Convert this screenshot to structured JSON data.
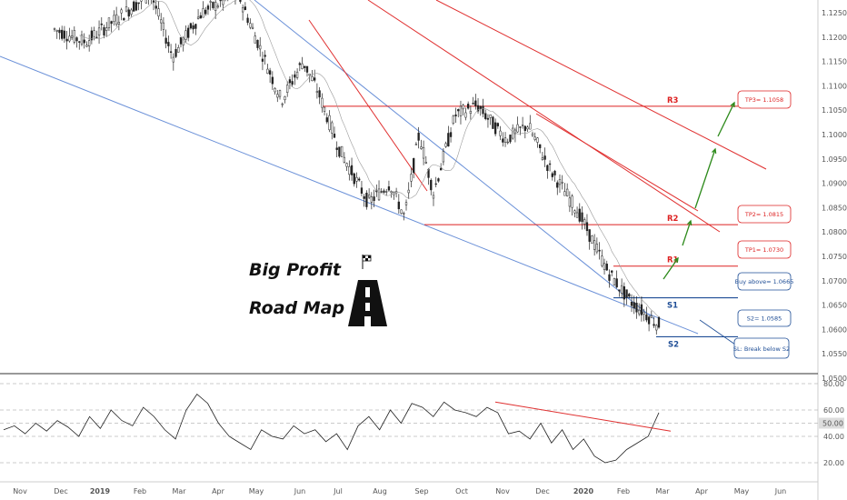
{
  "chart_data": [
    {
      "type": "candlestick",
      "title": "",
      "xlabel": "",
      "ylabel": "",
      "ylim": [
        1.046,
        1.129
      ],
      "x_tick_labels": [
        "Nov",
        "Dec",
        "2019",
        "Feb",
        "Mar",
        "Apr",
        "May",
        "Jun",
        "Jul",
        "Aug",
        "Sep",
        "Oct",
        "Nov",
        "Dec",
        "2020",
        "Feb",
        "Mar",
        "Apr",
        "May",
        "Jun"
      ],
      "y_ticks": [
        1.125,
        1.12,
        1.115,
        1.11,
        1.105,
        1.1,
        1.095,
        1.09,
        1.085,
        1.08,
        1.075,
        1.07,
        1.065,
        1.06,
        1.055,
        1.05
      ],
      "y_tick_labels": [
        "1.12500",
        "1.12000",
        "1.11500",
        "1.11000",
        "1.10500",
        "1.10000",
        "1.09500",
        "1.09000",
        "1.08500",
        "1.08000",
        "1.07500",
        "1.07000",
        "1.06500",
        "1.06000",
        "1.05500",
        "1.05000"
      ],
      "price_path": [
        [
          0,
          1.127
        ],
        [
          0.06,
          1.122
        ],
        [
          0.11,
          1.119
        ],
        [
          0.2,
          1.129
        ],
        [
          0.23,
          1.116
        ],
        [
          0.27,
          1.125
        ],
        [
          0.32,
          1.129
        ],
        [
          0.35,
          1.118
        ],
        [
          0.38,
          1.107
        ],
        [
          0.41,
          1.115
        ],
        [
          0.43,
          1.109
        ],
        [
          0.46,
          1.097
        ],
        [
          0.5,
          1.086
        ],
        [
          0.53,
          1.09
        ],
        [
          0.55,
          1.083
        ],
        [
          0.57,
          1.1
        ],
        [
          0.59,
          1.088
        ],
        [
          0.62,
          1.104
        ],
        [
          0.65,
          1.106
        ],
        [
          0.69,
          1.099
        ],
        [
          0.72,
          1.102
        ],
        [
          0.75,
          1.093
        ],
        [
          0.79,
          1.084
        ],
        [
          0.83,
          1.072
        ],
        [
          0.86,
          1.066
        ],
        [
          0.9,
          1.061
        ],
        [
          0.92,
          1.063
        ],
        [
          0.95,
          1.068
        ]
      ],
      "levels": [
        {
          "label": "R3",
          "value": 1.1058,
          "box": "TP3= 1.1058"
        },
        {
          "label": "R2",
          "value": 1.0815,
          "box": "TP2= 1.0815"
        },
        {
          "label": "R1",
          "value": 1.073,
          "box": "TP1= 1.0730"
        },
        {
          "label": "S1",
          "value": 1.0665,
          "box": "Buy above= 1.0665"
        },
        {
          "label": "S2",
          "value": 1.0585,
          "box": "S2= 1.0585"
        }
      ],
      "note_box": "SL: Break below S2",
      "annotations": [
        "Big Profit",
        "Road Map"
      ]
    },
    {
      "type": "line",
      "series": [
        {
          "values": [
            45,
            48,
            42,
            50,
            44,
            52,
            47,
            40,
            55,
            46,
            60,
            52,
            48,
            62,
            55,
            45,
            38,
            60,
            72,
            65,
            50,
            40,
            35,
            30,
            45,
            40,
            38,
            48,
            42,
            45,
            36,
            42,
            30,
            48,
            55,
            45,
            60,
            50,
            65,
            62,
            55,
            66,
            60,
            58,
            55,
            62,
            58,
            42,
            44,
            38,
            50,
            35,
            45,
            30,
            38,
            25,
            20,
            22,
            30,
            35,
            40,
            58
          ]
        }
      ],
      "ylim": [
        10,
        90
      ],
      "y_ticks": [
        80,
        60,
        50,
        40,
        20
      ],
      "y_tick_labels": [
        "80.00",
        "60.00",
        "50.00",
        "40.00",
        "20.00"
      ],
      "current_value_label": "50.00"
    }
  ],
  "colors": {
    "support": "#1f4e96",
    "resistance": "#d22",
    "arrow": "#2c8a1a",
    "trend_blue": "#6a90d8",
    "trend_red": "#e03030"
  }
}
